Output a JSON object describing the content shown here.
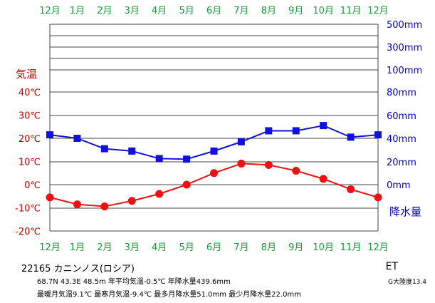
{
  "chart_data": {
    "type": "line",
    "categories": [
      "12月",
      "1月",
      "2月",
      "3月",
      "4月",
      "5月",
      "6月",
      "7月",
      "8月",
      "9月",
      "10月",
      "11月",
      "12月"
    ],
    "series": [
      {
        "name": "気温",
        "unit": "℃",
        "color": "#ee1111",
        "values": [
          -5.5,
          -8.5,
          -9.4,
          -7.0,
          -4.0,
          0.0,
          5.0,
          9.1,
          8.5,
          6.0,
          2.5,
          -2.0,
          -5.5
        ]
      },
      {
        "name": "降水量",
        "unit": "mm",
        "color": "#1111dd",
        "values": [
          43.0,
          40.0,
          31.0,
          29.0,
          22.5,
          22.0,
          29.0,
          37.0,
          46.5,
          46.5,
          51.0,
          41.0,
          43.0
        ]
      }
    ],
    "left_axis": {
      "label": "気温",
      "ticks": [
        "40℃",
        "30℃",
        "20℃",
        "10℃",
        "0℃",
        "-10℃",
        "-20℃"
      ],
      "tick_values": [
        40,
        30,
        20,
        10,
        0,
        -10,
        -20
      ],
      "range": [
        -20,
        60
      ],
      "color": "#cc0000"
    },
    "right_axis": {
      "label": "降水量",
      "ticks": [
        "500mm",
        "300mm",
        "100mm",
        "80mm",
        "60mm",
        "40mm",
        "20mm",
        "0mm"
      ],
      "color": "#0000cc"
    },
    "month_label_color": "#1a9a3a",
    "grid": true
  },
  "station": {
    "title": "22165  カニンノス(ロシア)",
    "line1": "68.7N  43.3E  48.5m  年平均気温-0.5℃  年降水量439.6mm",
    "line2": "最暖月気温9.1℃ 最寒月気温-9.4℃ 最多月降水量51.0mm 最少月降水量22.0mm",
    "koppen": "ET",
    "continent": "G大陸度13.4"
  }
}
